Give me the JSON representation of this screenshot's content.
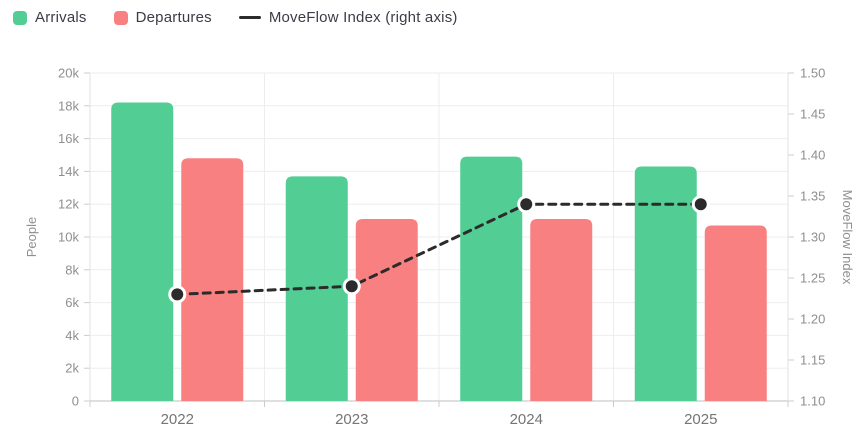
{
  "legend": {
    "items": [
      {
        "id": "arrivals",
        "label": "Arrivals",
        "swatch": "square",
        "color": "#52cd94"
      },
      {
        "id": "departures",
        "label": "Departures",
        "swatch": "square",
        "color": "#f98080"
      },
      {
        "id": "moveflow",
        "label": "MoveFlow Index (right axis)",
        "swatch": "line",
        "color": "#2b2b2b"
      }
    ]
  },
  "chart_data": {
    "type": "bar",
    "subtype": "grouped-bars-with-line-overlay",
    "categories": [
      "2022",
      "2023",
      "2024",
      "2025"
    ],
    "series": [
      {
        "name": "Arrivals",
        "type": "bar",
        "axis": "left",
        "color": "#52cd94",
        "values": [
          18200,
          13700,
          14900,
          14300
        ]
      },
      {
        "name": "Departures",
        "type": "bar",
        "axis": "left",
        "color": "#f98080",
        "values": [
          14800,
          11100,
          11100,
          10700
        ]
      },
      {
        "name": "MoveFlow Index",
        "type": "line",
        "axis": "right",
        "color": "#2b2b2b",
        "line_style": "dashed",
        "marker": "filled-circle",
        "values": [
          1.23,
          1.24,
          1.34,
          1.34
        ]
      }
    ],
    "left_axis": {
      "label": "People",
      "min": 0,
      "max": 20000,
      "tick_step": 2000,
      "tick_labels": [
        "0",
        "2k",
        "4k",
        "6k",
        "8k",
        "10k",
        "12k",
        "14k",
        "16k",
        "18k",
        "20k"
      ]
    },
    "right_axis": {
      "label": "MoveFlow Index",
      "min": 1.1,
      "max": 1.5,
      "tick_step": 0.05,
      "tick_labels": [
        "1.10",
        "1.15",
        "1.20",
        "1.25",
        "1.30",
        "1.35",
        "1.40",
        "1.45",
        "1.50"
      ]
    },
    "grid": true,
    "legend_position": "top-left"
  },
  "style": {
    "grid_color": "#ededed",
    "axis_border_color": "#e2e2e2",
    "bottom_axis_color": "#cccccc",
    "tick_color": "#cccccc",
    "tick_label_color": "#8f8f8f",
    "x_label_color": "#757575",
    "axis_title_color": "#8f8f8f",
    "background": "#ffffff"
  }
}
